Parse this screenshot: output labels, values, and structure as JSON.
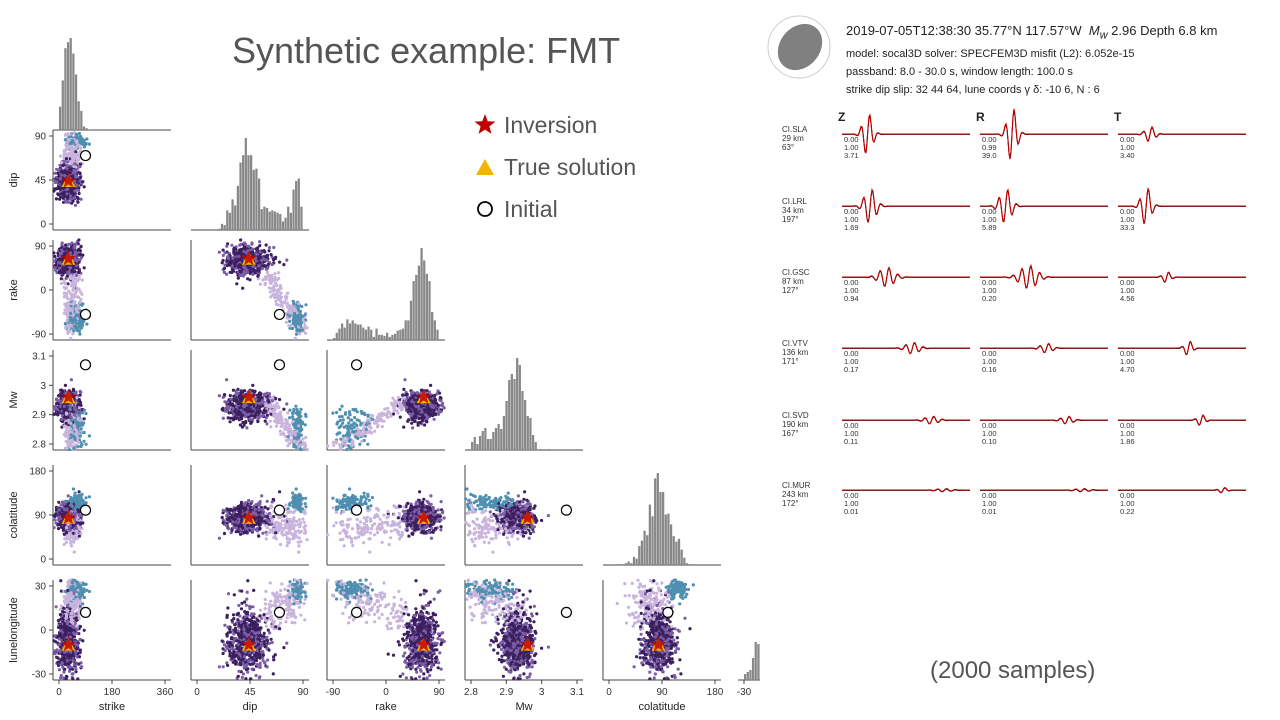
{
  "title": "Synthetic example: FMT",
  "samples_note": "(2000 samples)",
  "legend": [
    {
      "label": "Inversion",
      "marker": "star",
      "color": "#c00000"
    },
    {
      "label": "True solution",
      "marker": "triangle",
      "color": "#f5b400"
    },
    {
      "label": "Initial",
      "marker": "circle-open",
      "color": "#000000"
    }
  ],
  "header": {
    "line1_pre": "2019-07-05T12:38:30  35.77°N 117.57°W",
    "mw_label": "M",
    "mw_sub": "w",
    "line1_post": " 2.96   Depth 6.8 km",
    "line2": "model: socal3D   solver: SPECFEM3D   misfit (L2): 6.052e-15",
    "line3": "passband: 8.0 - 30.0 s,  window length: 100.0 s",
    "line4": "strike  dip  slip:  32  44  64,   lune coords γ  δ:  -10  6,   N : 6"
  },
  "waveform_panel": {
    "components": [
      "Z",
      "R",
      "T"
    ],
    "trace_color": "#c00000",
    "stations": [
      {
        "name": "CI.SLA",
        "dist": "29 km",
        "az": "63°",
        "stats": [
          [
            "0.00",
            "1.00",
            "3.71"
          ],
          [
            "0.00",
            "0.99",
            "39.0"
          ],
          [
            "0.00",
            "1.00",
            "3.40"
          ]
        ]
      },
      {
        "name": "CI.LRL",
        "dist": "34 km",
        "az": "197°",
        "stats": [
          [
            "0.00",
            "1.00",
            "1.69"
          ],
          [
            "0.00",
            "1.00",
            "5.89"
          ],
          [
            "0.00",
            "1.00",
            "33.3"
          ]
        ]
      },
      {
        "name": "CI.GSC",
        "dist": "87 km",
        "az": "127°",
        "stats": [
          [
            "0.00",
            "1.00",
            "0.94"
          ],
          [
            "0.00",
            "1.00",
            "0.20"
          ],
          [
            "0.00",
            "1.00",
            "4.56"
          ]
        ]
      },
      {
        "name": "CI.VTV",
        "dist": "136 km",
        "az": "171°",
        "stats": [
          [
            "0.00",
            "1.00",
            "0.17"
          ],
          [
            "0.00",
            "1.00",
            "0.16"
          ],
          [
            "0.00",
            "1.00",
            "4.70"
          ]
        ]
      },
      {
        "name": "CI.SVD",
        "dist": "190 km",
        "az": "167°",
        "stats": [
          [
            "0.00",
            "1.00",
            "0.11"
          ],
          [
            "0.00",
            "1.00",
            "0.10"
          ],
          [
            "0.00",
            "1.00",
            "1.86"
          ]
        ]
      },
      {
        "name": "CI.MUR",
        "dist": "243 km",
        "az": "172°",
        "stats": [
          [
            "0.00",
            "1.00",
            "0.01"
          ],
          [
            "0.00",
            "1.00",
            "0.01"
          ],
          [
            "0.00",
            "1.00",
            "0.22"
          ]
        ]
      }
    ]
  },
  "chart_data": {
    "type": "scatter",
    "kind": "pair-plot (corner plot)",
    "n_samples": 2000,
    "variables": [
      {
        "name": "strike",
        "range": [
          0,
          360
        ],
        "ticks": [
          0,
          180,
          360
        ]
      },
      {
        "name": "dip",
        "range": [
          0,
          90
        ],
        "ticks": [
          0,
          45,
          90
        ]
      },
      {
        "name": "rake",
        "range": [
          -90,
          90
        ],
        "ticks": [
          -90,
          0,
          90
        ]
      },
      {
        "name": "Mw",
        "range": [
          2.8,
          3.1
        ],
        "ticks": [
          2.8,
          2.9,
          3.0,
          3.1
        ]
      },
      {
        "name": "colatitude",
        "range": [
          0,
          180
        ],
        "ticks": [
          0,
          90,
          180
        ]
      },
      {
        "name": "lunelongitude",
        "range": [
          -30,
          30
        ],
        "ticks": [
          -30,
          0,
          30
        ]
      }
    ],
    "markers": {
      "inversion": {
        "strike": 32,
        "dip": 44,
        "rake": 64,
        "Mw": 2.96,
        "colatitude": 84,
        "lunelongitude": -10
      },
      "true_solution": {
        "strike": 32,
        "dip": 44,
        "rake": 64,
        "Mw": 2.96,
        "colatitude": 84,
        "lunelongitude": -10
      },
      "initial": {
        "strike": 90,
        "dip": 70,
        "rake": -50,
        "Mw": 3.07,
        "colatitude": 100,
        "lunelongitude": 12
      }
    },
    "colors": {
      "samples_dark": "#3b1f5e",
      "samples_mid": "#7b5ea7",
      "samples_light": "#c8b4dc",
      "samples_early": "#4f8fb0",
      "histogram": "#888888"
    },
    "grid": false
  }
}
